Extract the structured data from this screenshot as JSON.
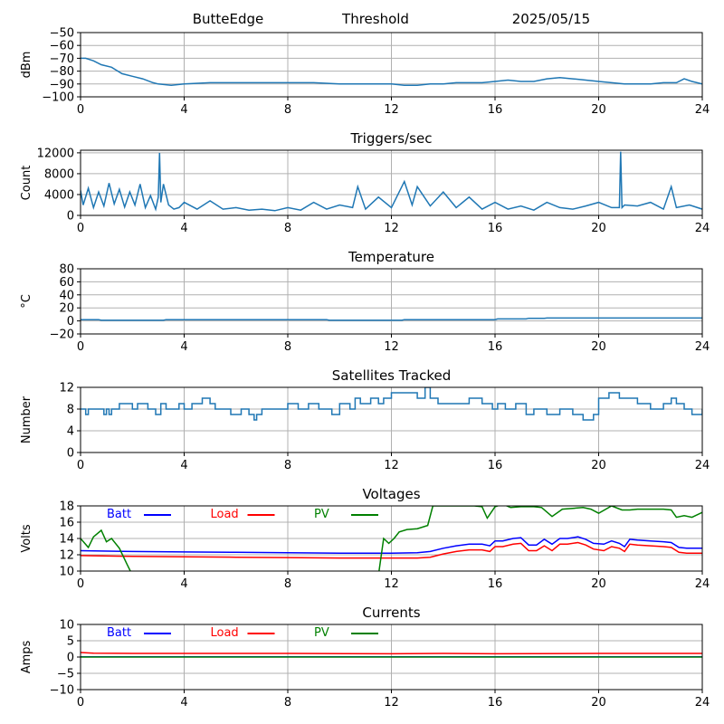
{
  "header": {
    "site": "ButteEdge",
    "label": "Threshold",
    "date": "2025/05/15"
  },
  "chart_data": [
    {
      "type": "line",
      "title": "",
      "ylabel": "dBm",
      "xlim": [
        0,
        24
      ],
      "xticks": [
        0,
        4,
        8,
        12,
        16,
        20,
        24
      ],
      "ylim": [
        -100,
        -50
      ],
      "yticks": [
        -100,
        -90,
        -80,
        -70,
        -60,
        -50
      ],
      "grid": true,
      "series": [
        {
          "color": "#1f77b4",
          "x": [
            0,
            0.2,
            0.5,
            0.8,
            1.2,
            1.6,
            2.0,
            2.4,
            2.8,
            3.0,
            3.5,
            4,
            5,
            6,
            7,
            8,
            9,
            10,
            11,
            12,
            12.5,
            13,
            13.5,
            14,
            14.5,
            15,
            15.5,
            16,
            16.5,
            17,
            17.5,
            18,
            18.5,
            19,
            19.5,
            20,
            20.5,
            21,
            21.5,
            22,
            22.5,
            23,
            23.3,
            23.6,
            24
          ],
          "y": [
            -70,
            -70,
            -72,
            -75,
            -77,
            -82,
            -84,
            -86,
            -89,
            -90,
            -91,
            -90,
            -89,
            -89,
            -89,
            -89,
            -89,
            -90,
            -90,
            -90,
            -91,
            -91,
            -90,
            -90,
            -89,
            -89,
            -89,
            -88,
            -87,
            -88,
            -88,
            -86,
            -85,
            -86,
            -87,
            -88,
            -89,
            -90,
            -90,
            -90,
            -89,
            -89,
            -86,
            -88,
            -90
          ]
        }
      ]
    },
    {
      "type": "line",
      "title": "Triggers/sec",
      "ylabel": "Count",
      "xlim": [
        0,
        24
      ],
      "xticks": [
        0,
        4,
        8,
        12,
        16,
        20,
        24
      ],
      "ylim": [
        0,
        12500
      ],
      "yticks": [
        0,
        4000,
        8000,
        12000
      ],
      "grid": true,
      "series": [
        {
          "color": "#1f77b4",
          "x": [
            0,
            0.1,
            0.3,
            0.5,
            0.7,
            0.9,
            1.1,
            1.3,
            1.5,
            1.7,
            1.9,
            2.1,
            2.3,
            2.5,
            2.7,
            2.9,
            3.0,
            3.05,
            3.1,
            3.2,
            3.4,
            3.6,
            3.8,
            4.0,
            4.5,
            5.0,
            5.5,
            6.0,
            6.5,
            7.0,
            7.5,
            8.0,
            8.5,
            9.0,
            9.5,
            10.0,
            10.5,
            10.7,
            11.0,
            11.5,
            12.0,
            12.5,
            12.8,
            13.0,
            13.5,
            14.0,
            14.5,
            15.0,
            15.5,
            16.0,
            16.5,
            17.0,
            17.5,
            18.0,
            18.5,
            19.0,
            19.5,
            20.0,
            20.5,
            20.8,
            20.85,
            20.9,
            21.0,
            21.5,
            22.0,
            22.5,
            22.8,
            23.0,
            23.5,
            24
          ],
          "y": [
            4800,
            2000,
            5200,
            1500,
            4500,
            1800,
            6200,
            2200,
            5000,
            1600,
            4500,
            2000,
            6000,
            1500,
            3800,
            1200,
            3500,
            12000,
            2500,
            6000,
            2000,
            1200,
            1500,
            2500,
            1200,
            2800,
            1200,
            1500,
            1000,
            1200,
            900,
            1500,
            1000,
            2500,
            1200,
            2000,
            1500,
            5500,
            1200,
            3500,
            1500,
            6500,
            2000,
            5500,
            1800,
            4500,
            1500,
            3500,
            1200,
            2500,
            1200,
            1800,
            1000,
            2500,
            1500,
            1200,
            1800,
            2500,
            1500,
            1500,
            12200,
            1500,
            2000,
            1800,
            2500,
            1200,
            5500,
            1500,
            2000,
            1200
          ]
        }
      ]
    },
    {
      "type": "line",
      "title": "Temperature",
      "ylabel": "°C",
      "xlim": [
        0,
        24
      ],
      "xticks": [
        0,
        4,
        8,
        12,
        16,
        20,
        24
      ],
      "ylim": [
        -20,
        80
      ],
      "yticks": [
        -20,
        0,
        20,
        40,
        60,
        80
      ],
      "grid": true,
      "series": [
        {
          "color": "#1f77b4",
          "x": [
            0,
            0.7,
            0.8,
            3.2,
            3.3,
            9.5,
            9.6,
            12.4,
            12.5,
            16.0,
            16.1,
            17.2,
            17.3,
            17.9,
            18.0,
            24
          ],
          "y": [
            2,
            2,
            1,
            1,
            2,
            2,
            1,
            1,
            2,
            2,
            3,
            3,
            4,
            4,
            4.5,
            4.5
          ]
        }
      ]
    },
    {
      "type": "line",
      "title": "Satellites Tracked",
      "ylabel": "Number",
      "xlim": [
        0,
        24
      ],
      "xticks": [
        0,
        4,
        8,
        12,
        16,
        20,
        24
      ],
      "ylim": [
        0,
        12
      ],
      "yticks": [
        0,
        4,
        8,
        12
      ],
      "grid": true,
      "series": [
        {
          "color": "#1f77b4",
          "step": true,
          "x": [
            0,
            0.2,
            0.3,
            0.4,
            0.9,
            1.0,
            1.1,
            1.2,
            1.5,
            2.0,
            2.2,
            2.6,
            2.9,
            3.1,
            3.3,
            3.8,
            4.0,
            4.3,
            4.7,
            5.0,
            5.2,
            5.8,
            6.2,
            6.5,
            6.7,
            6.8,
            7.0,
            7.5,
            8.0,
            8.4,
            8.8,
            9.2,
            9.7,
            10.0,
            10.4,
            10.6,
            10.8,
            11.2,
            11.5,
            11.7,
            12.0,
            12.5,
            13.0,
            13.3,
            13.5,
            13.8,
            14.5,
            15.0,
            15.5,
            15.9,
            16.1,
            16.4,
            16.8,
            17.2,
            17.5,
            18.0,
            18.5,
            19.0,
            19.2,
            19.4,
            19.8,
            20.0,
            20.4,
            20.8,
            21.5,
            22.0,
            22.5,
            22.8,
            23.0,
            23.3,
            23.6,
            24
          ],
          "y": [
            8,
            7,
            8,
            8,
            7,
            8,
            7,
            8,
            9,
            8,
            9,
            8,
            7,
            9,
            8,
            9,
            8,
            9,
            10,
            9,
            8,
            7,
            8,
            7,
            6,
            7,
            8,
            8,
            9,
            8,
            9,
            8,
            7,
            9,
            8,
            10,
            9,
            10,
            9,
            10,
            11,
            11,
            10,
            12,
            10,
            9,
            9,
            10,
            9,
            8,
            9,
            8,
            9,
            7,
            8,
            7,
            8,
            7,
            7,
            6,
            7,
            10,
            11,
            10,
            9,
            8,
            9,
            10,
            9,
            8,
            7,
            8
          ]
        }
      ]
    },
    {
      "type": "line",
      "title": "Voltages",
      "ylabel": "Volts",
      "xlim": [
        0,
        24
      ],
      "xticks": [
        0,
        4,
        8,
        12,
        16,
        20,
        24
      ],
      "ylim": [
        10,
        18
      ],
      "yticks": [
        10,
        12,
        14,
        16,
        18
      ],
      "grid": true,
      "legend": "top-left, inline",
      "series": [
        {
          "name": "Batt",
          "color": "#0000ff",
          "x": [
            0,
            2,
            4,
            6,
            8,
            10,
            12,
            13,
            13.5,
            14,
            14.5,
            15,
            15.5,
            15.8,
            16,
            16.3,
            16.7,
            17,
            17.3,
            17.6,
            17.9,
            18.2,
            18.5,
            18.8,
            19.2,
            19.5,
            19.8,
            20.2,
            20.5,
            20.8,
            21.0,
            21.2,
            21.5,
            22,
            22.5,
            22.8,
            23.1,
            23.4,
            24
          ],
          "y": [
            12.5,
            12.4,
            12.35,
            12.3,
            12.25,
            12.2,
            12.2,
            12.25,
            12.4,
            12.8,
            13.1,
            13.3,
            13.3,
            13.1,
            13.7,
            13.7,
            14.0,
            14.1,
            13.2,
            13.2,
            13.9,
            13.3,
            14.0,
            14.0,
            14.2,
            13.9,
            13.4,
            13.3,
            13.7,
            13.4,
            13.0,
            13.9,
            13.8,
            13.7,
            13.6,
            13.5,
            12.9,
            12.8,
            12.8
          ]
        },
        {
          "name": "Load",
          "color": "#ff0000",
          "x": [
            0,
            2,
            4,
            6,
            8,
            10,
            12,
            13,
            13.5,
            14,
            14.5,
            15,
            15.5,
            15.8,
            16,
            16.3,
            16.7,
            17,
            17.3,
            17.6,
            17.9,
            18.2,
            18.5,
            18.8,
            19.2,
            19.5,
            19.8,
            20.2,
            20.5,
            20.8,
            21.0,
            21.2,
            21.5,
            22,
            22.5,
            22.8,
            23.1,
            23.4,
            24
          ],
          "y": [
            11.9,
            11.8,
            11.75,
            11.7,
            11.65,
            11.6,
            11.6,
            11.6,
            11.7,
            12.1,
            12.4,
            12.6,
            12.6,
            12.4,
            13.0,
            13.0,
            13.3,
            13.4,
            12.5,
            12.5,
            13.1,
            12.5,
            13.3,
            13.3,
            13.5,
            13.2,
            12.7,
            12.5,
            13.0,
            12.8,
            12.4,
            13.3,
            13.2,
            13.1,
            13.0,
            12.9,
            12.3,
            12.2,
            12.2
          ]
        },
        {
          "name": "PV",
          "color": "#008000",
          "x": [
            0,
            0.3,
            0.5,
            0.8,
            1.0,
            1.2,
            1.5,
            1.8,
            2.0,
            11.5,
            11.7,
            11.9,
            12.1,
            12.3,
            12.6,
            13.0,
            13.4,
            13.6,
            15.2,
            15.5,
            15.7,
            16.0,
            16.3,
            16.6,
            17.0,
            17.5,
            17.8,
            18.2,
            18.6,
            19.0,
            19.4,
            19.7,
            20.0,
            20.5,
            20.9,
            21.2,
            21.5,
            22.0,
            22.5,
            22.8,
            23.0,
            23.3,
            23.6,
            24
          ],
          "y": [
            14,
            12.9,
            14.2,
            15,
            13.6,
            14,
            12.8,
            10.8,
            9.5,
            9.5,
            14,
            13.4,
            14,
            14.8,
            15.1,
            15.2,
            15.6,
            18,
            18,
            17.9,
            16.5,
            17.9,
            18.2,
            17.8,
            17.9,
            17.9,
            17.8,
            16.7,
            17.6,
            17.7,
            17.8,
            17.6,
            17.1,
            18.0,
            17.5,
            17.5,
            17.6,
            17.6,
            17.6,
            17.5,
            16.6,
            16.8,
            16.6,
            17.2
          ]
        }
      ]
    },
    {
      "type": "line",
      "title": "Currents",
      "ylabel": "Amps",
      "xlim": [
        0,
        24
      ],
      "xticks": [
        0,
        4,
        8,
        12,
        16,
        20,
        24
      ],
      "ylim": [
        -10,
        10
      ],
      "yticks": [
        -10,
        -5,
        0,
        5,
        10
      ],
      "grid": true,
      "legend": "top-left, inline",
      "series": [
        {
          "name": "Batt",
          "color": "#0000ff",
          "x": [
            0,
            24
          ],
          "y": [
            0.05,
            0.05
          ]
        },
        {
          "name": "Load",
          "color": "#ff0000",
          "x": [
            0,
            0.5,
            2,
            4,
            8,
            12,
            14,
            16,
            20,
            24
          ],
          "y": [
            1.4,
            1.2,
            1.1,
            1.1,
            1.1,
            1.0,
            1.1,
            1.0,
            1.1,
            1.1
          ]
        },
        {
          "name": "PV",
          "color": "#008000",
          "x": [
            0,
            24
          ],
          "y": [
            0.0,
            0.0
          ]
        }
      ]
    }
  ]
}
